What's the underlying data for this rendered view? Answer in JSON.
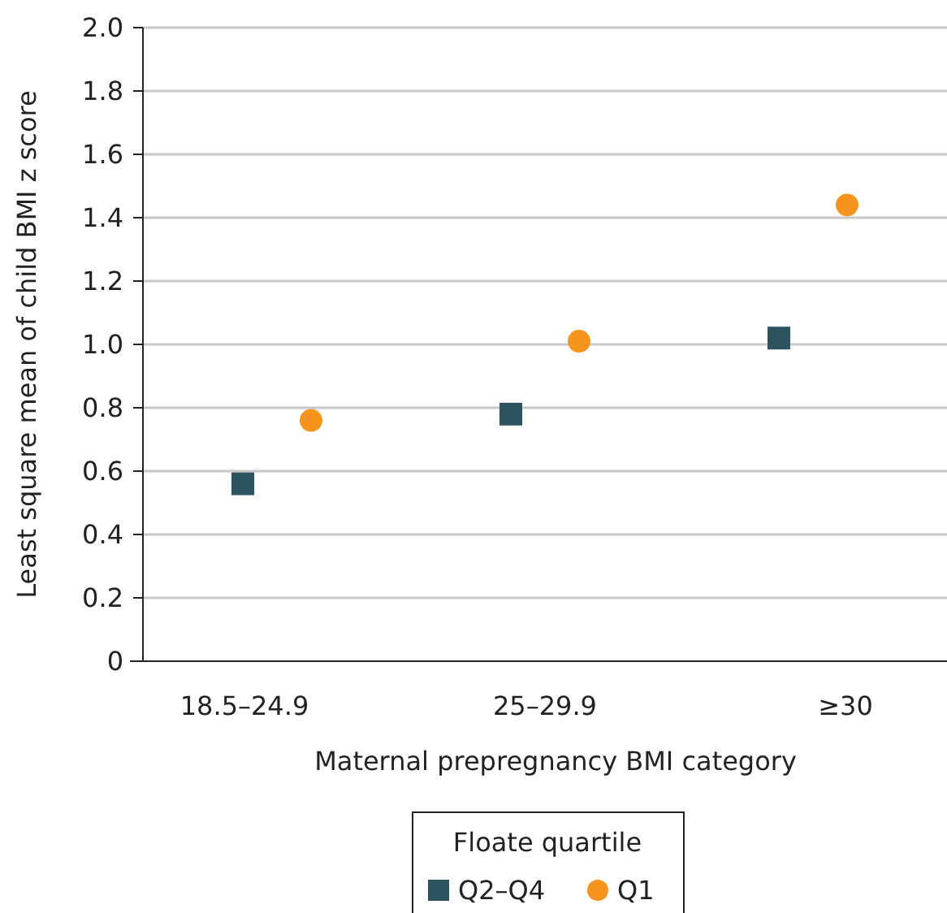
{
  "chart_data": {
    "type": "scatter",
    "xlabel": "Maternal prepregnancy BMI category",
    "ylabel": "Least square mean of child BMI z score",
    "legend_title": "Floate quartile",
    "categories": [
      "18.5–24.9",
      "25–29.9",
      "≥30"
    ],
    "series": [
      {
        "name": "Q2–Q4",
        "color": "#2d5361",
        "marker": "square",
        "values": [
          0.56,
          0.78,
          1.02
        ]
      },
      {
        "name": "Q1",
        "color": "#f7941d",
        "marker": "circle",
        "values": [
          0.76,
          1.01,
          1.44
        ]
      }
    ],
    "ylim": [
      0,
      2.0
    ],
    "yticks": [
      {
        "value": 0,
        "label": "0"
      },
      {
        "value": 0.2,
        "label": "0.2"
      },
      {
        "value": 0.4,
        "label": "0.4"
      },
      {
        "value": 0.6,
        "label": "0.6"
      },
      {
        "value": 0.8,
        "label": "0.8"
      },
      {
        "value": 1.0,
        "label": "1.0"
      },
      {
        "value": 1.2,
        "label": "1.2"
      },
      {
        "value": 1.4,
        "label": "1.4"
      },
      {
        "value": 1.6,
        "label": "1.6"
      },
      {
        "value": 1.8,
        "label": "1.8"
      },
      {
        "value": 2.0,
        "label": "2.0"
      }
    ],
    "grid": "y",
    "legend": "bottom"
  }
}
